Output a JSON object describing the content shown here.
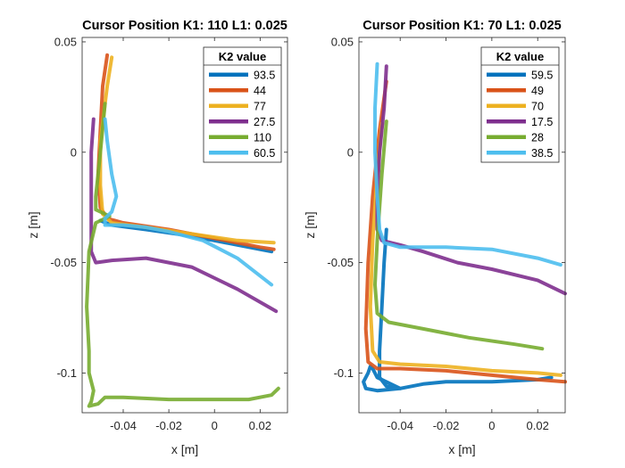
{
  "chart_data": [
    {
      "type": "line",
      "title": "Cursor Position K1: 110 L1: 0.025",
      "xlabel": "x [m]",
      "ylabel": "z [m]",
      "xlim": [
        -0.058,
        0.032
      ],
      "ylim": [
        -0.118,
        0.052
      ],
      "xticks": [
        -0.04,
        -0.02,
        0,
        0.02
      ],
      "xtick_labels": [
        "-0.04",
        "-0.02",
        "0",
        "0.02"
      ],
      "yticks": [
        0.05,
        0,
        -0.05,
        -0.1
      ],
      "ytick_labels": [
        "0.05",
        "0",
        "-0.05",
        "-0.1"
      ],
      "grid": false,
      "legend_title": "K2 value",
      "legend_position": "top-right",
      "series": [
        {
          "name": "93.5",
          "color": "#0072BD",
          "points": [
            [
              -0.05,
              -0.031
            ],
            [
              -0.045,
              -0.033
            ],
            [
              -0.03,
              -0.035
            ],
            [
              -0.01,
              -0.038
            ],
            [
              0.01,
              -0.042
            ],
            [
              0.025,
              -0.045
            ]
          ]
        },
        {
          "name": "44",
          "color": "#D95319",
          "points": [
            [
              -0.047,
              0.044
            ],
            [
              -0.049,
              0.03
            ],
            [
              -0.05,
              0.01
            ],
            [
              -0.051,
              -0.01
            ],
            [
              -0.05,
              -0.025
            ],
            [
              -0.047,
              -0.03
            ],
            [
              -0.04,
              -0.032
            ],
            [
              -0.02,
              -0.035
            ],
            [
              0.0,
              -0.039
            ],
            [
              0.02,
              -0.043
            ],
            [
              0.026,
              -0.044
            ]
          ]
        },
        {
          "name": "77",
          "color": "#EDB120",
          "points": [
            [
              -0.045,
              0.043
            ],
            [
              -0.047,
              0.03
            ],
            [
              -0.05,
              0.005
            ],
            [
              -0.05,
              -0.015
            ],
            [
              -0.049,
              -0.028
            ],
            [
              -0.045,
              -0.032
            ],
            [
              -0.03,
              -0.034
            ],
            [
              -0.01,
              -0.037
            ],
            [
              0.01,
              -0.04
            ],
            [
              0.026,
              -0.041
            ]
          ]
        },
        {
          "name": "27.5",
          "color": "#7E2F8E",
          "points": [
            [
              -0.053,
              0.015
            ],
            [
              -0.054,
              0.0
            ],
            [
              -0.054,
              -0.02
            ],
            [
              -0.054,
              -0.035
            ],
            [
              -0.054,
              -0.045
            ],
            [
              -0.052,
              -0.05
            ],
            [
              -0.045,
              -0.049
            ],
            [
              -0.03,
              -0.048
            ],
            [
              -0.01,
              -0.052
            ],
            [
              0.01,
              -0.062
            ],
            [
              0.027,
              -0.072
            ]
          ]
        },
        {
          "name": "110",
          "color": "#77AC30",
          "points": [
            [
              -0.048,
              0.022
            ],
            [
              -0.05,
              0.0
            ],
            [
              -0.052,
              -0.02
            ],
            [
              -0.052,
              -0.026
            ],
            [
              -0.05,
              -0.027
            ],
            [
              -0.046,
              -0.029
            ],
            [
              -0.052,
              -0.032
            ],
            [
              -0.055,
              -0.045
            ],
            [
              -0.056,
              -0.07
            ],
            [
              -0.055,
              -0.09
            ],
            [
              -0.055,
              -0.1
            ],
            [
              -0.053,
              -0.108
            ],
            [
              -0.054,
              -0.113
            ],
            [
              -0.055,
              -0.115
            ],
            [
              -0.051,
              -0.114
            ],
            [
              -0.048,
              -0.111
            ],
            [
              -0.04,
              -0.111
            ],
            [
              -0.02,
              -0.112
            ],
            [
              0.0,
              -0.112
            ],
            [
              0.015,
              -0.112
            ],
            [
              0.025,
              -0.11
            ],
            [
              0.028,
              -0.107
            ]
          ]
        },
        {
          "name": "60.5",
          "color": "#4DBEEE",
          "points": [
            [
              -0.048,
              0.015
            ],
            [
              -0.047,
              0.005
            ],
            [
              -0.045,
              -0.01
            ],
            [
              -0.043,
              -0.02
            ],
            [
              -0.045,
              -0.027
            ],
            [
              -0.048,
              -0.03
            ],
            [
              -0.048,
              -0.033
            ],
            [
              -0.04,
              -0.033
            ],
            [
              -0.03,
              -0.034
            ],
            [
              -0.02,
              -0.036
            ],
            [
              -0.005,
              -0.04
            ],
            [
              0.01,
              -0.048
            ],
            [
              0.025,
              -0.06
            ]
          ]
        }
      ]
    },
    {
      "type": "line",
      "title": "Cursor Position K1: 70 L1: 0.025",
      "xlabel": "x [m]",
      "ylabel": "z [m]",
      "xlim": [
        -0.058,
        0.032
      ],
      "ylim": [
        -0.118,
        0.052
      ],
      "xticks": [
        -0.04,
        -0.02,
        0,
        0.02
      ],
      "xtick_labels": [
        "-0.04",
        "-0.02",
        "0",
        "0.02"
      ],
      "yticks": [
        0.05,
        0,
        -0.05,
        -0.1
      ],
      "ytick_labels": [
        "0.05",
        "0",
        "-0.05",
        "-0.1"
      ],
      "grid": false,
      "legend_title": "K2 value",
      "legend_position": "top-right",
      "series": [
        {
          "name": "59.5",
          "color": "#0072BD",
          "points": [
            [
              -0.046,
              -0.035
            ],
            [
              -0.047,
              -0.05
            ],
            [
              -0.048,
              -0.07
            ],
            [
              -0.049,
              -0.09
            ],
            [
              -0.049,
              -0.102
            ],
            [
              -0.046,
              -0.106
            ],
            [
              -0.04,
              -0.107
            ],
            [
              -0.05,
              -0.102
            ],
            [
              -0.052,
              -0.098
            ],
            [
              -0.053,
              -0.097
            ],
            [
              -0.054,
              -0.1
            ],
            [
              -0.056,
              -0.104
            ],
            [
              -0.055,
              -0.107
            ],
            [
              -0.05,
              -0.108
            ],
            [
              -0.04,
              -0.107
            ],
            [
              -0.03,
              -0.105
            ],
            [
              -0.02,
              -0.104
            ],
            [
              0.0,
              -0.104
            ],
            [
              0.02,
              -0.103
            ],
            [
              0.026,
              -0.102
            ]
          ]
        },
        {
          "name": "49",
          "color": "#D95319",
          "points": [
            [
              -0.046,
              0.032
            ],
            [
              -0.049,
              0.01
            ],
            [
              -0.052,
              -0.02
            ],
            [
              -0.054,
              -0.05
            ],
            [
              -0.055,
              -0.08
            ],
            [
              -0.054,
              -0.095
            ],
            [
              -0.05,
              -0.098
            ],
            [
              -0.04,
              -0.098
            ],
            [
              -0.02,
              -0.099
            ],
            [
              0.0,
              -0.101
            ],
            [
              0.02,
              -0.103
            ],
            [
              0.032,
              -0.104
            ]
          ]
        },
        {
          "name": "70",
          "color": "#EDB120",
          "points": [
            [
              -0.048,
              0.013
            ],
            [
              -0.05,
              -0.01
            ],
            [
              -0.052,
              -0.04
            ],
            [
              -0.053,
              -0.07
            ],
            [
              -0.052,
              -0.09
            ],
            [
              -0.049,
              -0.095
            ],
            [
              -0.04,
              -0.096
            ],
            [
              -0.02,
              -0.097
            ],
            [
              0.0,
              -0.099
            ],
            [
              0.02,
              -0.1
            ],
            [
              0.03,
              -0.101
            ]
          ]
        },
        {
          "name": "17.5",
          "color": "#7E2F8E",
          "points": [
            [
              -0.046,
              0.039
            ],
            [
              -0.047,
              0.02
            ],
            [
              -0.049,
              0.0
            ],
            [
              -0.05,
              -0.02
            ],
            [
              -0.05,
              -0.035
            ],
            [
              -0.048,
              -0.04
            ],
            [
              -0.04,
              -0.042
            ],
            [
              -0.03,
              -0.045
            ],
            [
              -0.015,
              -0.05
            ],
            [
              0.0,
              -0.053
            ],
            [
              0.02,
              -0.058
            ],
            [
              0.032,
              -0.064
            ]
          ]
        },
        {
          "name": "28",
          "color": "#77AC30",
          "points": [
            [
              -0.046,
              0.014
            ],
            [
              -0.048,
              -0.01
            ],
            [
              -0.05,
              -0.04
            ],
            [
              -0.051,
              -0.06
            ],
            [
              -0.05,
              -0.073
            ],
            [
              -0.045,
              -0.077
            ],
            [
              -0.03,
              -0.08
            ],
            [
              -0.01,
              -0.084
            ],
            [
              0.01,
              -0.087
            ],
            [
              0.022,
              -0.089
            ]
          ]
        },
        {
          "name": "38.5",
          "color": "#4DBEEE",
          "points": [
            [
              -0.05,
              0.04
            ],
            [
              -0.051,
              0.02
            ],
            [
              -0.051,
              0.0
            ],
            [
              -0.05,
              -0.02
            ],
            [
              -0.049,
              -0.035
            ],
            [
              -0.047,
              -0.041
            ],
            [
              -0.04,
              -0.043
            ],
            [
              -0.02,
              -0.043
            ],
            [
              0.0,
              -0.044
            ],
            [
              0.02,
              -0.048
            ],
            [
              0.03,
              -0.051
            ]
          ]
        }
      ]
    }
  ]
}
